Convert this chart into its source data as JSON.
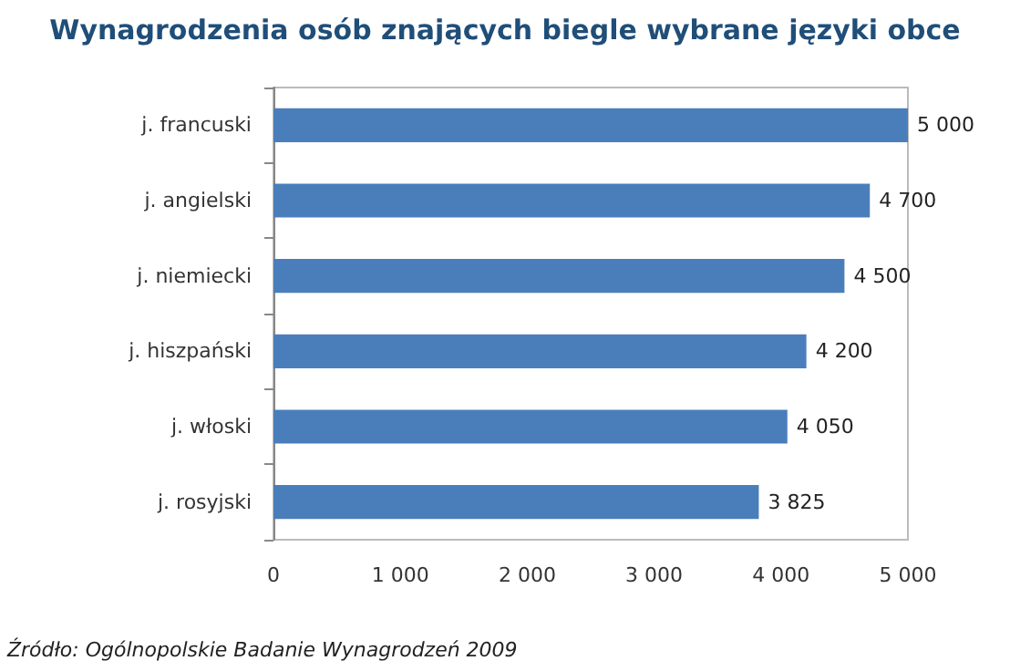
{
  "chart_data": {
    "type": "bar",
    "orientation": "horizontal",
    "title": "Wynagrodzenia osób znających biegle wybrane języki obce",
    "categories": [
      "j. francuski",
      "j. angielski",
      "j. niemiecki",
      "j. hiszpański",
      "j. włoski",
      "j. rosyjski"
    ],
    "values": [
      5000,
      4700,
      4500,
      4200,
      4050,
      3825
    ],
    "color": "#4a7ebb",
    "value_labels": [
      "5 000",
      "4 700",
      "4 500",
      "4 200",
      "4 050",
      "3 825"
    ],
    "xlim": [
      0,
      5000
    ],
    "xticks": [
      0,
      {
        "value": 1000,
        "label": "1 000"
      },
      {
        "value": 2000,
        "label": "2 000"
      },
      {
        "value": 3000,
        "label": "3 000"
      },
      {
        "value": 4000,
        "label": "4 000"
      },
      {
        "value": 5000,
        "label": "5 000"
      }
    ],
    "grid": false,
    "annotations": [
      "Źródło: Ogólnopolskie Badanie Wynagrodzeń 2009"
    ]
  }
}
